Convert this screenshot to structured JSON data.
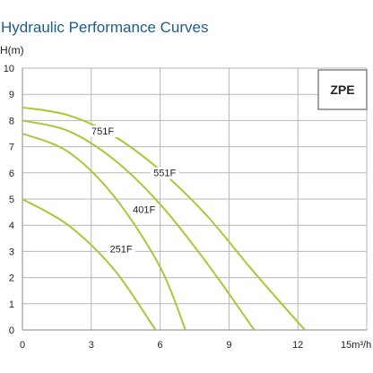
{
  "chart_data": {
    "type": "line",
    "title": "Hydraulic Performance Curves",
    "ylabel": "H(m)",
    "xlabel": "15m³/h",
    "model": "ZPE",
    "xlim": [
      0,
      15
    ],
    "ylim": [
      0,
      10
    ],
    "xticks": [
      "0",
      "3",
      "6",
      "9",
      "12"
    ],
    "yticks": [
      "0",
      "1",
      "2",
      "3",
      "4",
      "5",
      "6",
      "7",
      "8",
      "9",
      "10"
    ],
    "grid": true,
    "series": [
      {
        "name": "751F",
        "x": [
          0,
          2,
          4,
          6,
          8,
          10,
          12.3
        ],
        "y": [
          8.5,
          8.2,
          7.4,
          6.1,
          4.4,
          2.3,
          0
        ],
        "label_at": [
          3.5,
          7.5
        ]
      },
      {
        "name": "551F",
        "x": [
          0,
          2,
          4,
          6,
          8,
          10.1
        ],
        "y": [
          8.0,
          7.6,
          6.5,
          4.8,
          2.6,
          0
        ],
        "label_at": [
          6.2,
          5.9
        ]
      },
      {
        "name": "401F",
        "x": [
          0,
          2,
          4,
          6,
          7.1
        ],
        "y": [
          7.5,
          6.8,
          5.1,
          2.4,
          0
        ],
        "label_at": [
          5.3,
          4.5
        ]
      },
      {
        "name": "251F",
        "x": [
          0,
          2,
          4,
          5.8
        ],
        "y": [
          5.0,
          4.0,
          2.3,
          0
        ],
        "label_at": [
          4.3,
          3.0
        ]
      }
    ]
  }
}
